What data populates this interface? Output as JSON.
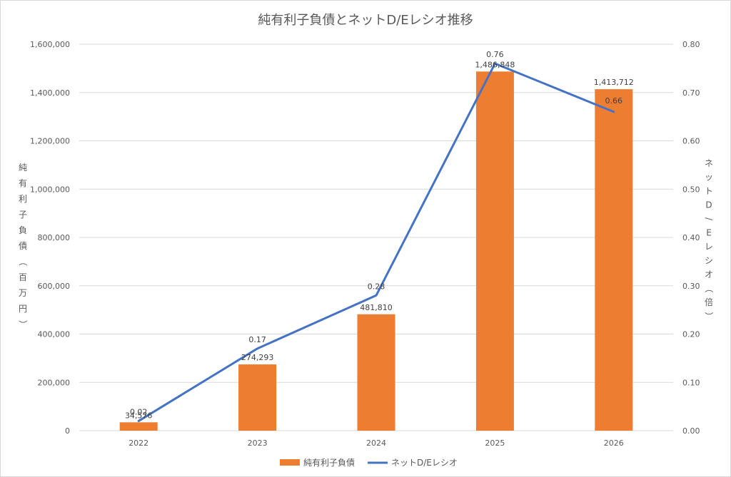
{
  "chart_data": {
    "type": "bar+line",
    "title": "純有利子負債とネットD/Eレシオ推移",
    "categories": [
      "2022",
      "2023",
      "2024",
      "2025",
      "2026"
    ],
    "series": [
      {
        "name": "純有利子負債",
        "type": "bar",
        "axis": "left",
        "color": "#ED7D31",
        "values": [
          34576,
          274293,
          481810,
          1486848,
          1413712
        ],
        "labels": [
          "34,576",
          "274,293",
          "481,810",
          "1,486,848",
          "1,413,712"
        ]
      },
      {
        "name": "ネットD/Eレシオ",
        "type": "line",
        "axis": "right",
        "color": "#4472C4",
        "values": [
          0.02,
          0.17,
          0.28,
          0.76,
          0.66
        ],
        "labels": [
          "0.02",
          "0.17",
          "0.28",
          "0.76",
          "0.66"
        ]
      }
    ],
    "y_left": {
      "label": "純有利子負債（百万円）",
      "range": [
        0,
        1600000
      ],
      "ticks": [
        "0",
        "200,000",
        "400,000",
        "600,000",
        "800,000",
        "1,000,000",
        "1,200,000",
        "1,400,000",
        "1,600,000"
      ]
    },
    "y_right": {
      "label": "ネットD/Eレシオ（倍）",
      "range": [
        0,
        0.8
      ],
      "ticks": [
        "0.00",
        "0.10",
        "0.20",
        "0.30",
        "0.40",
        "0.50",
        "0.60",
        "0.70",
        "0.80"
      ]
    },
    "grid": true,
    "legend": "bottom",
    "gridline_color": "#d9d9d9"
  }
}
